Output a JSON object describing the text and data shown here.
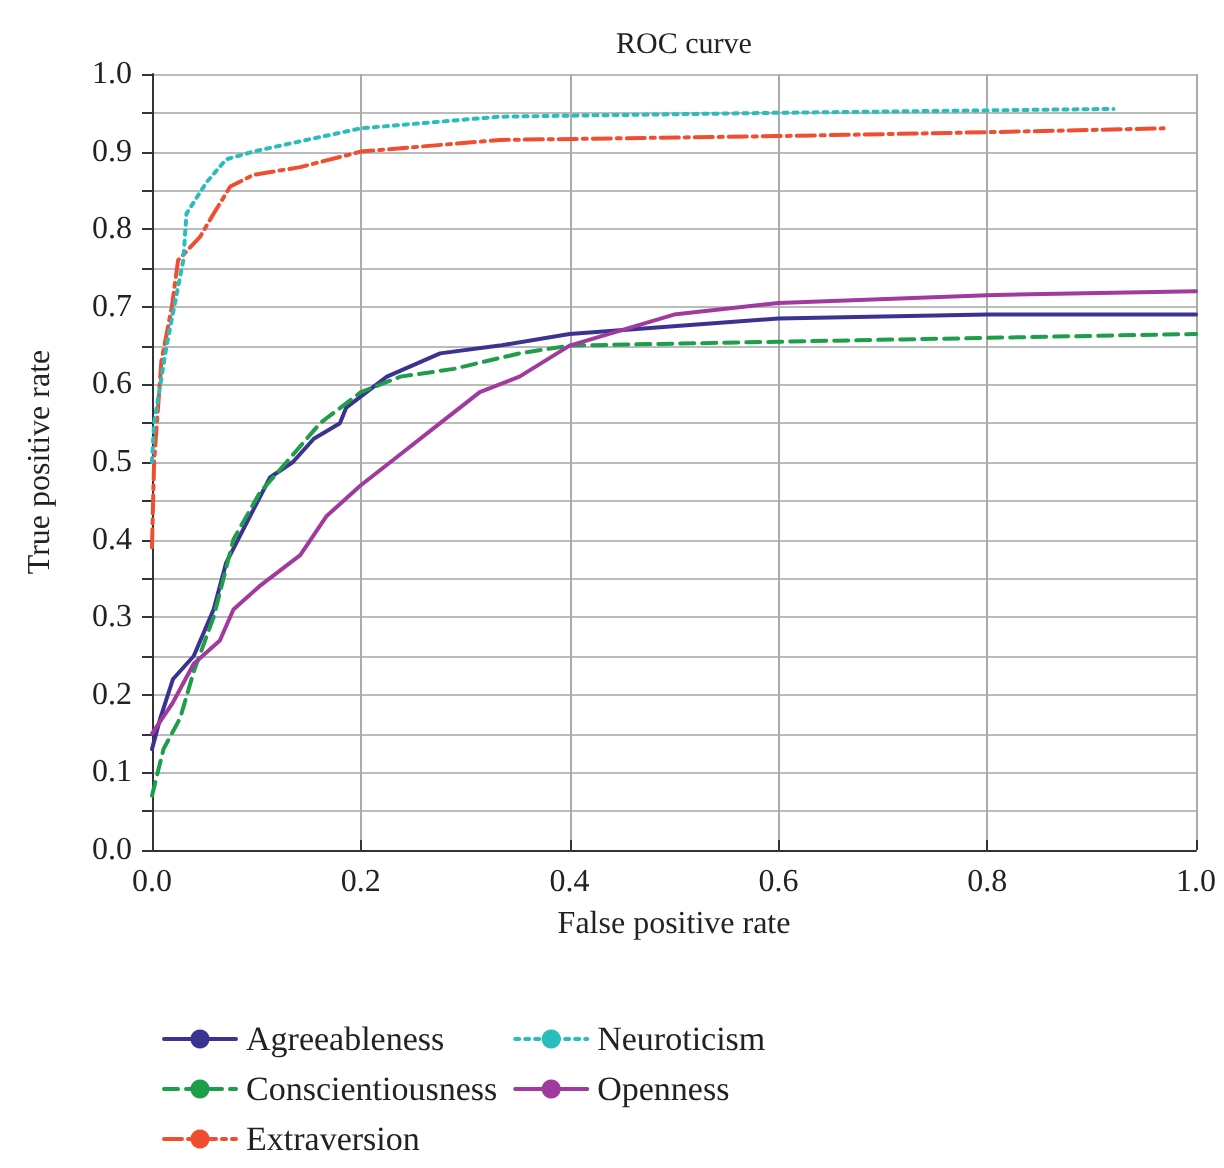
{
  "chart_data": {
    "type": "line",
    "title": "ROC curve",
    "xlabel": "False positive rate",
    "ylabel": "True positive rate",
    "xlim": [
      0,
      1
    ],
    "ylim": [
      0,
      1
    ],
    "xticks": [
      {
        "value": 0,
        "label": "0.0"
      },
      {
        "value": 0.2,
        "label": "0.2"
      },
      {
        "value": 0.4,
        "label": "0.4"
      },
      {
        "value": 0.6,
        "label": "0.6"
      },
      {
        "value": 0.8,
        "label": "0.8"
      },
      {
        "value": 1,
        "label": "1.0"
      }
    ],
    "yticks": [
      {
        "value": 0,
        "label": "0.0"
      },
      {
        "value": 0.05,
        "label": null
      },
      {
        "value": 0.1,
        "label": "0.1"
      },
      {
        "value": 0.15,
        "label": null
      },
      {
        "value": 0.2,
        "label": "0.2"
      },
      {
        "value": 0.25,
        "label": null
      },
      {
        "value": 0.3,
        "label": "0.3"
      },
      {
        "value": 0.35,
        "label": null
      },
      {
        "value": 0.4,
        "label": "0.4"
      },
      {
        "value": 0.45,
        "label": null
      },
      {
        "value": 0.5,
        "label": "0.5"
      },
      {
        "value": 0.55,
        "label": null
      },
      {
        "value": 0.6,
        "label": "0.6"
      },
      {
        "value": 0.65,
        "label": null
      },
      {
        "value": 0.7,
        "label": "0.7"
      },
      {
        "value": 0.75,
        "label": null
      },
      {
        "value": 0.8,
        "label": "0.8"
      },
      {
        "value": 0.85,
        "label": null
      },
      {
        "value": 0.9,
        "label": "0.9"
      },
      {
        "value": 0.95,
        "label": null
      },
      {
        "value": 1,
        "label": "1.0"
      }
    ],
    "grid": true,
    "legend": "bottom",
    "marker": "none",
    "series": [
      {
        "name": "Agreeableness",
        "color": "#3a3391",
        "line_style": "solid",
        "x": [
          0,
          0.008,
          0.02,
          0.04,
          0.059,
          0.071,
          0.09,
          0.113,
          0.135,
          0.155,
          0.18,
          0.186,
          0.225,
          0.276,
          0.333,
          0.4,
          0.6,
          0.8,
          1
        ],
        "values": [
          0.13,
          0.17,
          0.22,
          0.25,
          0.31,
          0.37,
          0.42,
          0.48,
          0.5,
          0.53,
          0.55,
          0.57,
          0.61,
          0.64,
          0.65,
          0.665,
          0.685,
          0.69,
          0.69
        ]
      },
      {
        "name": "Conscientiousness",
        "color": "#1e9e4a",
        "line_style": "dashed",
        "x": [
          0,
          0.011,
          0.027,
          0.04,
          0.059,
          0.078,
          0.103,
          0.129,
          0.161,
          0.2,
          0.238,
          0.289,
          0.352,
          0.4,
          0.6,
          0.8,
          1
        ],
        "values": [
          0.07,
          0.13,
          0.17,
          0.23,
          0.3,
          0.4,
          0.46,
          0.5,
          0.55,
          0.59,
          0.61,
          0.62,
          0.64,
          0.65,
          0.655,
          0.66,
          0.665
        ]
      },
      {
        "name": "Extraversion",
        "color": "#f04e30",
        "line_style": "dashdot",
        "x": [
          0,
          0.002,
          0.009,
          0.019,
          0.025,
          0.046,
          0.059,
          0.075,
          0.097,
          0.142,
          0.2,
          0.333,
          0.6,
          0.8,
          0.969
        ],
        "values": [
          0.39,
          0.5,
          0.63,
          0.7,
          0.76,
          0.79,
          0.82,
          0.855,
          0.87,
          0.88,
          0.9,
          0.915,
          0.92,
          0.925,
          0.93
        ]
      },
      {
        "name": "Neuroticism",
        "color": "#2bbcbc",
        "line_style": "dotted",
        "x": [
          0,
          0.002,
          0.014,
          0.03,
          0.033,
          0.052,
          0.071,
          0.097,
          0.148,
          0.2,
          0.333,
          0.6,
          0.921
        ],
        "values": [
          0.5,
          0.55,
          0.65,
          0.76,
          0.82,
          0.86,
          0.89,
          0.9,
          0.915,
          0.93,
          0.945,
          0.95,
          0.955
        ]
      },
      {
        "name": "Openness",
        "color": "#a03a9e",
        "line_style": "solid",
        "x": [
          0,
          0.02,
          0.04,
          0.065,
          0.078,
          0.103,
          0.142,
          0.167,
          0.2,
          0.238,
          0.276,
          0.314,
          0.352,
          0.4,
          0.5,
          0.6,
          0.8,
          1
        ],
        "values": [
          0.15,
          0.19,
          0.24,
          0.27,
          0.31,
          0.34,
          0.38,
          0.43,
          0.47,
          0.51,
          0.55,
          0.59,
          0.61,
          0.65,
          0.69,
          0.705,
          0.715,
          0.72
        ]
      }
    ]
  }
}
